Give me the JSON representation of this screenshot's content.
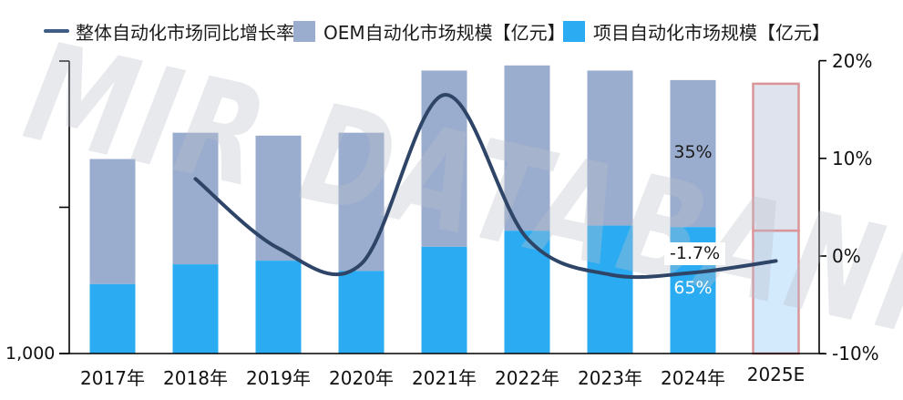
{
  "legend": [
    {
      "label": "整体自动化市场同比增长率",
      "swatch": "line",
      "color": "#3f5d85"
    },
    {
      "label": "OEM自动化市场规模【亿元】",
      "swatch": "square",
      "color": "#9badce"
    },
    {
      "label": "项目自动化市场规模【亿元】",
      "swatch": "square",
      "color": "#2bacf2"
    }
  ],
  "watermark": {
    "text": "MIR DATABANK"
  },
  "chart_data": {
    "type": "combo-stacked-bar-line",
    "categories": [
      "2017年",
      "2018年",
      "2019年",
      "2020年",
      "2021年",
      "2022年",
      "2023年",
      "2024年",
      "2025E"
    ],
    "series": [
      {
        "name": "项目自动化市场规模【亿元】",
        "type": "bar",
        "stack": "market",
        "color": "#2bacf2",
        "values": [
          1475,
          1610,
          1635,
          1565,
          1730,
          1840,
          1875,
          1865,
          1840
        ]
      },
      {
        "name": "OEM自动化市场规模【亿元】",
        "type": "bar",
        "stack": "market",
        "color": "#9badce",
        "values": [
          855,
          900,
          855,
          945,
          1205,
          1130,
          1060,
          1005,
          1005
        ]
      },
      {
        "name": "整体自动化市场同比增长率",
        "type": "line",
        "axis": "right",
        "color": "#2f4568",
        "x": [
          "2018年",
          "2019年",
          "2020年",
          "2021年",
          "2022年",
          "2023年",
          "2024年",
          "2025E"
        ],
        "values_pct": [
          7.9,
          0.8,
          -0.8,
          16.5,
          1.8,
          -1.9,
          -1.7,
          -0.5
        ]
      }
    ],
    "values_estimated_from_pixels": true,
    "y_left": {
      "min": 1000,
      "max": 3000,
      "ticks": [
        {
          "value": 1000,
          "label": "1,000"
        },
        {
          "value": 2000,
          "label": ""
        },
        {
          "value": 3000,
          "label": ""
        }
      ]
    },
    "y_right": {
      "min": -10,
      "max": 20,
      "ticks": [
        {
          "value": 20,
          "label": "20%"
        },
        {
          "value": 10,
          "label": "10%"
        },
        {
          "value": 0,
          "label": "0%"
        },
        {
          "value": -10,
          "label": "-10%"
        }
      ]
    },
    "annotations": [
      {
        "text": "35%",
        "color": "#1a1a1a",
        "background": ""
      },
      {
        "text": "-1.7%",
        "color": "#1a1a1a",
        "background": "#ffffff"
      },
      {
        "text": "65%",
        "color": "#ffffff",
        "background": ""
      }
    ],
    "forecast_bar": {
      "category": "2025E",
      "border_color": "#d99598",
      "fill_top": "#dfe3ee",
      "fill_bottom": "#d3e9fc"
    },
    "grid": "off",
    "legend_position": "top"
  }
}
